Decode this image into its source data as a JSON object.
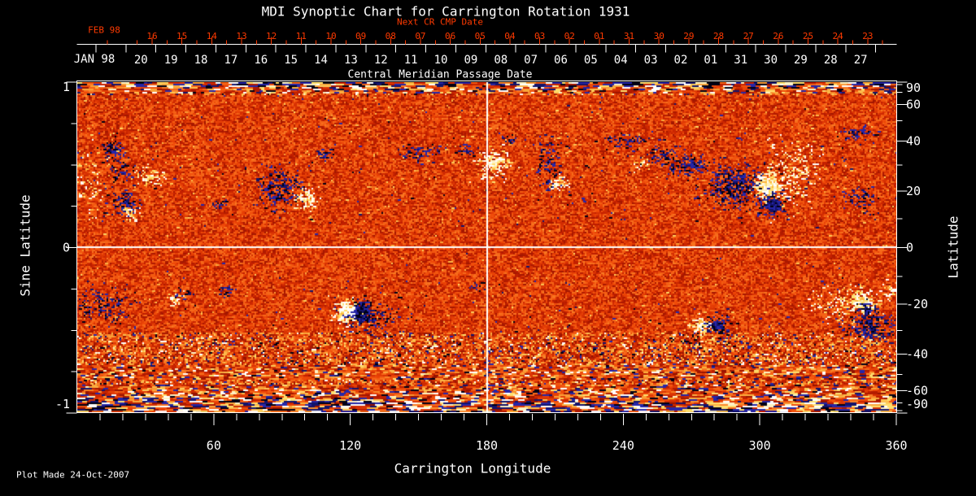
{
  "title": "MDI Synoptic Chart for Carrington Rotation 1931",
  "footer": {
    "plot_made": "Plot Made 24-Oct-2007"
  },
  "top_axis_red": {
    "label": "Next CR CMP Date",
    "month_label": "FEB 98",
    "dates": [
      "16",
      "15",
      "14",
      "13",
      "12",
      "11",
      "10",
      "09",
      "08",
      "07",
      "06",
      "05",
      "04",
      "03",
      "02",
      "01",
      "31",
      "30",
      "29",
      "28",
      "27",
      "26",
      "25",
      "24",
      "23"
    ],
    "color": "#ff3a00"
  },
  "top_axis_white": {
    "label": "Central Meridian Passage Date",
    "month_label": "JAN 98",
    "dates": [
      "20",
      "19",
      "18",
      "17",
      "16",
      "15",
      "14",
      "13",
      "12",
      "11",
      "10",
      "09",
      "08",
      "07",
      "06",
      "05",
      "04",
      "03",
      "02",
      "01",
      "31",
      "30",
      "29",
      "28",
      "27"
    ]
  },
  "left_axis": {
    "label": "Sine Latitude",
    "ticks": [
      "1",
      "0",
      "-1"
    ]
  },
  "right_axis": {
    "label": "Latitude",
    "ticks": [
      "90",
      "60",
      "40",
      "20",
      "0",
      "-20",
      "-40",
      "-60",
      "-90"
    ]
  },
  "bottom_axis": {
    "label": "Carrington Longitude",
    "ticks": [
      "60",
      "120",
      "180",
      "240",
      "300",
      "360"
    ]
  },
  "palette": {
    "background": "#000000",
    "axis_white": "#ffffff",
    "axis_red": "#ff3a00",
    "map_base_stops": [
      "#7c0c00",
      "#c42000",
      "#ef4808",
      "#f8701e",
      "#fba93c",
      "#ffd966"
    ],
    "negative": [
      "#000014",
      "#13136b",
      "#2626a8"
    ],
    "positive": [
      "#ffffff",
      "#fdf2c4",
      "#ffdf6e",
      "#fcb33c"
    ]
  },
  "chart_data": {
    "type": "heatmap",
    "title": "MDI Synoptic Chart for Carrington Rotation 1931",
    "xlabel": "Carrington Longitude",
    "ylabel_left": "Sine Latitude",
    "ylabel_right": "Latitude",
    "xlim": [
      0,
      360
    ],
    "ylim_sine": [
      -1,
      1
    ],
    "x_ticks": [
      60,
      120,
      180,
      240,
      300,
      360
    ],
    "left_ticks": [
      1,
      0,
      -1
    ],
    "right_ticks": [
      90,
      60,
      40,
      20,
      0,
      -20,
      -40,
      -60,
      -90
    ],
    "grid_crosshair": {
      "longitude": 180,
      "sine_latitude": 0
    },
    "note": "Magnetogram map: orange/red quiet Sun, white/yellow positive-polarity regions, dark blue/black negative-polarity regions",
    "features": [
      {
        "lon": 16,
        "slat": 0.59,
        "sx": 5,
        "sy": 0.05,
        "pol": -1,
        "den": 0.5
      },
      {
        "lon": 20,
        "slat": 0.47,
        "sx": 4,
        "sy": 0.05,
        "pol": -1,
        "den": 0.35
      },
      {
        "lon": 32,
        "slat": 0.43,
        "sx": 5,
        "sy": 0.05,
        "pol": 1,
        "den": 0.55
      },
      {
        "lon": 20,
        "slat": 0.28,
        "sx": 4.5,
        "sy": 0.07,
        "pol": -1,
        "den": 0.5
      },
      {
        "lon": 24,
        "slat": 0.21,
        "sx": 3,
        "sy": 0.04,
        "pol": 1,
        "den": 0.5
      },
      {
        "lon": 63,
        "slat": 0.27,
        "sx": 2.2,
        "sy": 0.03,
        "pol": -1,
        "den": 0.5
      },
      {
        "lon": 88,
        "slat": 0.36,
        "sx": 8,
        "sy": 0.09,
        "pol": -1,
        "den": 0.5
      },
      {
        "lon": 101,
        "slat": 0.3,
        "sx": 5,
        "sy": 0.05,
        "pol": 1,
        "den": 0.6
      },
      {
        "lon": 109,
        "slat": 0.57,
        "sx": 3,
        "sy": 0.03,
        "pol": -1,
        "den": 0.4
      },
      {
        "lon": 152,
        "slat": 0.58,
        "sx": 6,
        "sy": 0.045,
        "pol": -1,
        "den": 0.3
      },
      {
        "lon": 171,
        "slat": 0.59,
        "sx": 3.5,
        "sy": 0.035,
        "pol": -1,
        "den": 0.45
      },
      {
        "lon": 183,
        "slat": 0.52,
        "sx": 6,
        "sy": 0.07,
        "pol": 1,
        "den": 0.7
      },
      {
        "lon": 190,
        "slat": 0.66,
        "sx": 3.5,
        "sy": 0.03,
        "pol": -1,
        "den": 0.4
      },
      {
        "lon": 207,
        "slat": 0.51,
        "sx": 4.5,
        "sy": 0.12,
        "pol": -1,
        "den": 0.3
      },
      {
        "lon": 212,
        "slat": 0.39,
        "sx": 3.5,
        "sy": 0.04,
        "pol": 1,
        "den": 0.6
      },
      {
        "lon": 240,
        "slat": 0.655,
        "sx": 8,
        "sy": 0.035,
        "pol": -1,
        "den": 0.35
      },
      {
        "lon": 258,
        "slat": 0.56,
        "sx": 6,
        "sy": 0.05,
        "pol": -1,
        "den": 0.35
      },
      {
        "lon": 248,
        "slat": 0.51,
        "sx": 3,
        "sy": 0.03,
        "pol": 1,
        "den": 0.5
      },
      {
        "lon": 270,
        "slat": 0.5,
        "sx": 9,
        "sy": 0.06,
        "pol": -1,
        "den": 0.35
      },
      {
        "lon": 290,
        "slat": 0.375,
        "sx": 11,
        "sy": 0.1,
        "pol": -1,
        "den": 0.55
      },
      {
        "lon": 304,
        "slat": 0.375,
        "sx": 5,
        "sy": 0.06,
        "pol": 1,
        "den": 0.95
      },
      {
        "lon": 306,
        "slat": 0.26,
        "sx": 4.5,
        "sy": 0.05,
        "pol": -1,
        "den": 0.8
      },
      {
        "lon": 316,
        "slat": 0.46,
        "sx": 10,
        "sy": 0.15,
        "pol": 1,
        "den": 0.28
      },
      {
        "lon": 344,
        "slat": 0.69,
        "sx": 6.5,
        "sy": 0.04,
        "pol": -1,
        "den": 0.35
      },
      {
        "lon": 345,
        "slat": 0.29,
        "sx": 5.5,
        "sy": 0.06,
        "pol": -1,
        "den": 0.35
      },
      {
        "lon": 7,
        "slat": 0.39,
        "sx": 6,
        "sy": 0.17,
        "pol": 1,
        "den": 0.15
      },
      {
        "lon": 12,
        "slat": -0.36,
        "sx": 9,
        "sy": 0.09,
        "pol": -1,
        "den": 0.3
      },
      {
        "lon": 43,
        "slat": -0.3,
        "sx": 3,
        "sy": 0.035,
        "pol": 1,
        "den": 0.55
      },
      {
        "lon": 47,
        "slat": -0.28,
        "sx": 2.5,
        "sy": 0.03,
        "pol": -1,
        "den": 0.5
      },
      {
        "lon": 66,
        "slat": -0.26,
        "sx": 3,
        "sy": 0.03,
        "pol": -1,
        "den": 0.45
      },
      {
        "lon": 118,
        "slat": -0.385,
        "sx": 4.5,
        "sy": 0.065,
        "pol": 1,
        "den": 0.9
      },
      {
        "lon": 125,
        "slat": -0.39,
        "sx": 4,
        "sy": 0.055,
        "pol": -1,
        "den": 0.85
      },
      {
        "lon": 129,
        "slat": -0.43,
        "sx": 11,
        "sy": 0.09,
        "pol": -1,
        "den": 0.25
      },
      {
        "lon": 176,
        "slat": -0.235,
        "sx": 3,
        "sy": 0.025,
        "pol": -1,
        "den": 0.45
      },
      {
        "lon": 274,
        "slat": -0.47,
        "sx": 3.5,
        "sy": 0.045,
        "pol": 1,
        "den": 0.8
      },
      {
        "lon": 282,
        "slat": -0.47,
        "sx": 4.5,
        "sy": 0.05,
        "pol": -1,
        "den": 0.75
      },
      {
        "lon": 268,
        "slat": -0.555,
        "sx": 4.5,
        "sy": 0.035,
        "pol": -1,
        "den": 0.3
      },
      {
        "lon": 338,
        "slat": -0.33,
        "sx": 11,
        "sy": 0.08,
        "pol": 1,
        "den": 0.32
      },
      {
        "lon": 345,
        "slat": -0.32,
        "sx": 4.5,
        "sy": 0.045,
        "pol": 1,
        "den": 0.85
      },
      {
        "lon": 347,
        "slat": -0.37,
        "sx": 2.5,
        "sy": 0.035,
        "pol": -1,
        "den": 0.7
      },
      {
        "lon": 348,
        "slat": -0.47,
        "sx": 9,
        "sy": 0.075,
        "pol": -1,
        "den": 0.55
      },
      {
        "lon": 358,
        "slat": -0.25,
        "sx": 4,
        "sy": 0.06,
        "pol": 1,
        "den": 0.3
      }
    ]
  }
}
